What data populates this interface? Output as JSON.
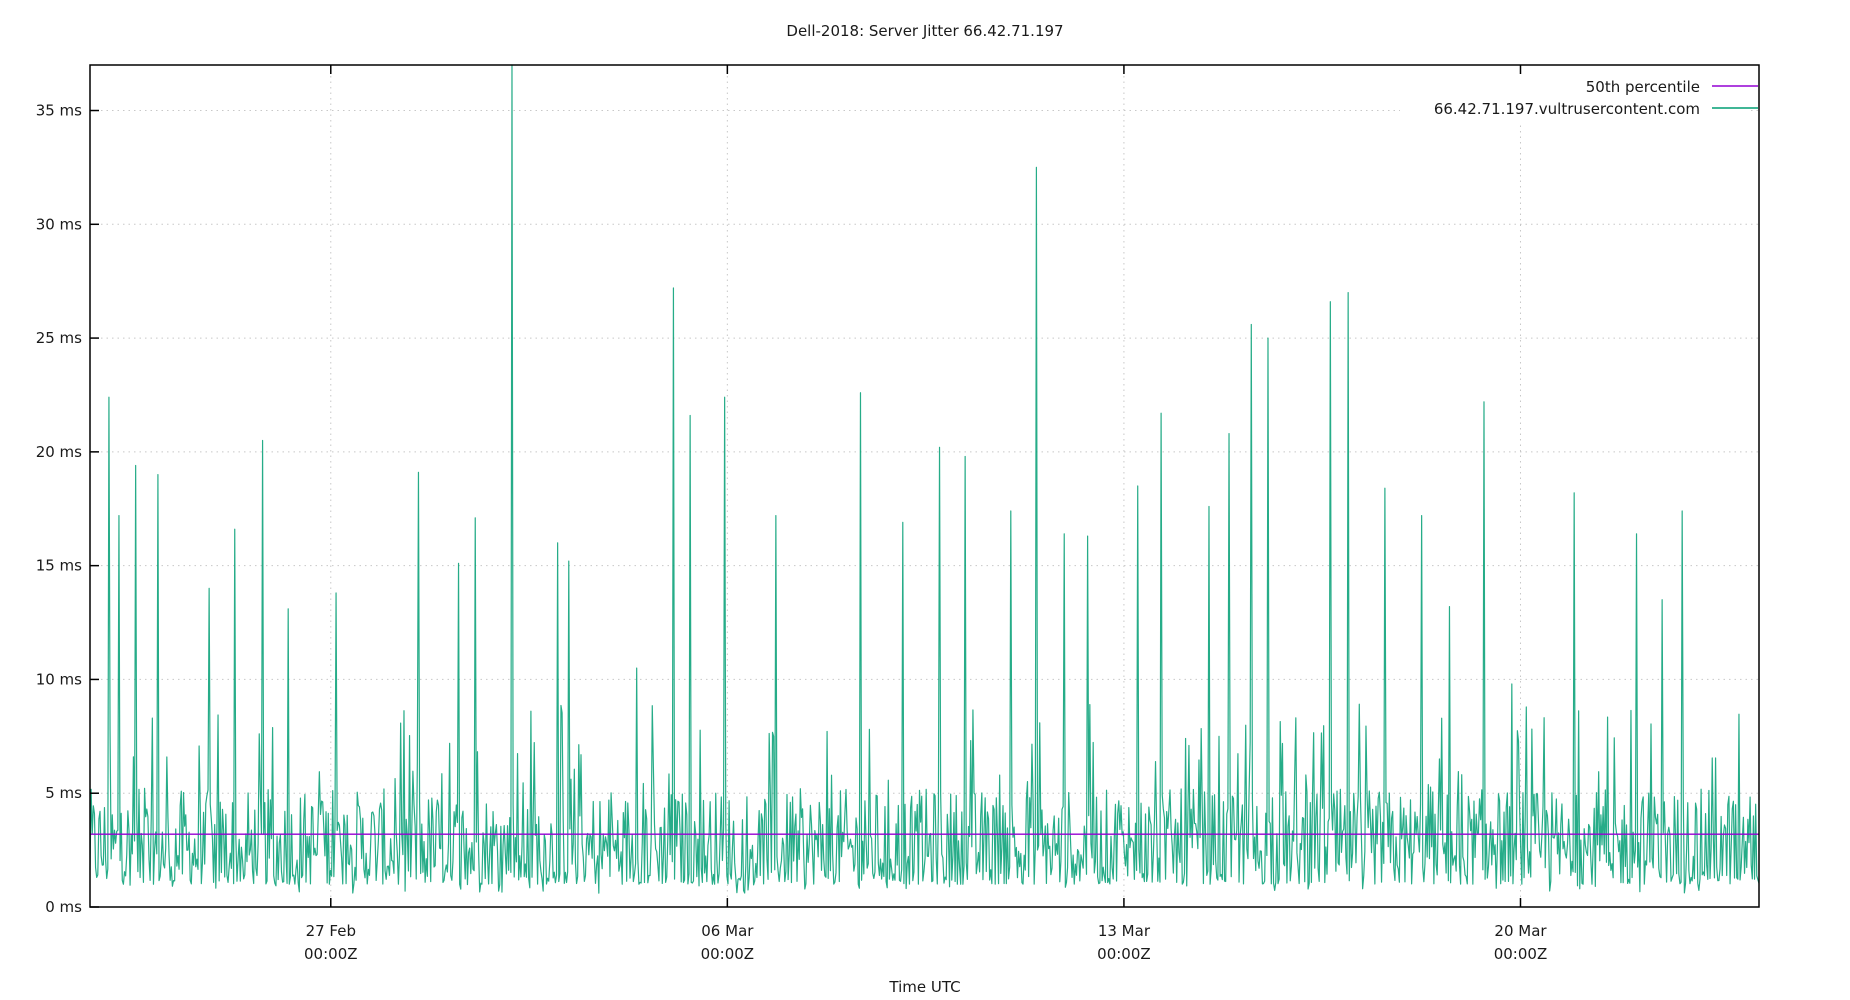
{
  "chart_data": {
    "type": "line",
    "title": "Dell-2018: Server Jitter 66.42.71.197",
    "xlabel": "Time UTC",
    "ylabel": "",
    "ylim": [
      0,
      37
    ],
    "yticks": [
      0,
      5,
      10,
      15,
      20,
      25,
      30,
      35
    ],
    "ytick_labels": [
      "0 ms",
      "5 ms",
      "10 ms",
      "15 ms",
      "20 ms",
      "25 ms",
      "30 ms",
      "35 ms"
    ],
    "xrange_days": [
      "2025-02-22T18:00Z",
      "2025-03-24T05:00Z"
    ],
    "xticks": [
      {
        "label_line1": "27 Feb",
        "label_line2": "00:00Z",
        "day_offset": 4.25
      },
      {
        "label_line1": "06 Mar",
        "label_line2": "00:00Z",
        "day_offset": 11.25
      },
      {
        "label_line1": "13 Mar",
        "label_line2": "00:00Z",
        "day_offset": 18.25
      },
      {
        "label_line1": "20 Mar",
        "label_line2": "00:00Z",
        "day_offset": 25.25
      }
    ],
    "grid": true,
    "legend_position": "top-right",
    "series": [
      {
        "name": "50th percentile",
        "color": "#9400d3",
        "kind": "constant",
        "value": 3.2
      },
      {
        "name": "66.42.71.197.vultrusercontent.com",
        "color": "#009e73",
        "kind": "noisy-jitter",
        "baseline_typical_range": [
          1.0,
          6.0
        ],
        "spikes": [
          {
            "day_offset": 0.33,
            "value": 22.4
          },
          {
            "day_offset": 0.52,
            "value": 17.2
          },
          {
            "day_offset": 0.8,
            "value": 19.4
          },
          {
            "day_offset": 1.2,
            "value": 19.0
          },
          {
            "day_offset": 2.1,
            "value": 14.0
          },
          {
            "day_offset": 2.55,
            "value": 16.6
          },
          {
            "day_offset": 3.05,
            "value": 20.5
          },
          {
            "day_offset": 3.5,
            "value": 13.1
          },
          {
            "day_offset": 4.35,
            "value": 13.8
          },
          {
            "day_offset": 5.8,
            "value": 19.1
          },
          {
            "day_offset": 6.5,
            "value": 15.1
          },
          {
            "day_offset": 6.8,
            "value": 17.1
          },
          {
            "day_offset": 7.45,
            "value": 37.0
          },
          {
            "day_offset": 8.25,
            "value": 16.0
          },
          {
            "day_offset": 8.45,
            "value": 15.2
          },
          {
            "day_offset": 9.65,
            "value": 10.5
          },
          {
            "day_offset": 10.3,
            "value": 27.2
          },
          {
            "day_offset": 10.6,
            "value": 21.6
          },
          {
            "day_offset": 11.2,
            "value": 22.4
          },
          {
            "day_offset": 12.1,
            "value": 17.2
          },
          {
            "day_offset": 13.6,
            "value": 22.6
          },
          {
            "day_offset": 14.35,
            "value": 16.9
          },
          {
            "day_offset": 15.0,
            "value": 20.2
          },
          {
            "day_offset": 15.45,
            "value": 19.8
          },
          {
            "day_offset": 16.25,
            "value": 17.4
          },
          {
            "day_offset": 16.7,
            "value": 32.5
          },
          {
            "day_offset": 17.2,
            "value": 16.4
          },
          {
            "day_offset": 17.6,
            "value": 16.3
          },
          {
            "day_offset": 18.5,
            "value": 18.5
          },
          {
            "day_offset": 18.9,
            "value": 21.7
          },
          {
            "day_offset": 19.75,
            "value": 17.6
          },
          {
            "day_offset": 20.1,
            "value": 20.8
          },
          {
            "day_offset": 20.5,
            "value": 25.6
          },
          {
            "day_offset": 20.8,
            "value": 25.0
          },
          {
            "day_offset": 21.9,
            "value": 26.6
          },
          {
            "day_offset": 22.2,
            "value": 27.0
          },
          {
            "day_offset": 22.85,
            "value": 18.4
          },
          {
            "day_offset": 23.5,
            "value": 17.2
          },
          {
            "day_offset": 24.0,
            "value": 13.2
          },
          {
            "day_offset": 24.6,
            "value": 22.2
          },
          {
            "day_offset": 25.1,
            "value": 9.8
          },
          {
            "day_offset": 26.2,
            "value": 18.2
          },
          {
            "day_offset": 27.3,
            "value": 16.4
          },
          {
            "day_offset": 27.75,
            "value": 13.5
          },
          {
            "day_offset": 28.1,
            "value": 17.4
          }
        ]
      }
    ]
  }
}
